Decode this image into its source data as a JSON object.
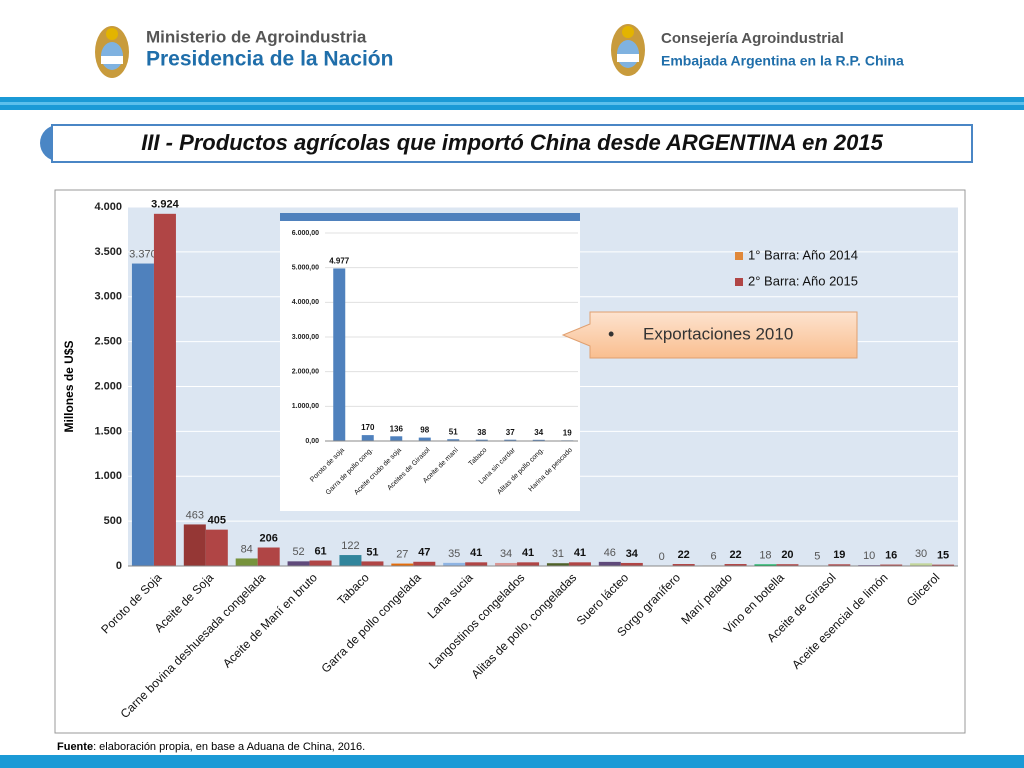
{
  "header": {
    "left_line1": "Ministerio de Agroindustria",
    "left_line2": "Presidencia de la Nación",
    "right_line1": "Consejería Agroindustrial",
    "right_line2": "Embajada Argentina en la R.P. China"
  },
  "title": "III - Productos agrícolas que importó China desde ARGENTINA en 2015",
  "chart_data": [
    {
      "type": "bar",
      "y_label": "Millones de U$S",
      "categories": [
        "Poroto de Soja",
        "Aceite de Soja",
        "Carne bovina deshuesada congelada",
        "Aceite de Maní en bruto",
        "Tabaco",
        "Garra de pollo congelada",
        "Lana sucia",
        "Langostinos congelados",
        "Alitas de pollo, congeladas",
        "Suero lácteo",
        "Sorgo granífero",
        "Maní pelado",
        "Vino en botella",
        "Aceite de Girasol",
        "Aceite esencial de limón",
        "Glicerol"
      ],
      "series": [
        {
          "name": "1° Barra: Año 2014",
          "color": "#e0883a",
          "colors": [
            "#4f81bd",
            "#953735",
            "#77933c",
            "#604a7b",
            "#31859c",
            "#e46c0a",
            "#8eb4e3",
            "#d99694",
            "#4f6228",
            "#5f497a",
            "#4bacc6",
            "#f79646",
            "#00b050",
            "#c0504d",
            "#8064a2",
            "#c3d69b"
          ],
          "values": [
            3370,
            463,
            84,
            52,
            122,
            27,
            35,
            34,
            31,
            46,
            0,
            6,
            18,
            5,
            10,
            30
          ],
          "value_labels": [
            "3.370",
            "463",
            "84",
            "52",
            "122",
            "27",
            "35",
            "34",
            "31",
            "46",
            "0",
            "6",
            "18",
            "5",
            "10",
            "30"
          ]
        },
        {
          "name": "2° Barra: Año 2015",
          "color": "#b04545",
          "values": [
            3924,
            405,
            206,
            61,
            51,
            47,
            41,
            41,
            41,
            34,
            22,
            22,
            20,
            19,
            16,
            15
          ],
          "value_labels": [
            "3.924",
            "405",
            "206",
            "61",
            "51",
            "47",
            "41",
            "41",
            "41",
            "34",
            "22",
            "22",
            "20",
            "19",
            "16",
            "15"
          ]
        }
      ],
      "ylim": [
        0,
        4000
      ],
      "yticks": [
        0,
        500,
        {
          "value": 1000,
          "label": "1.000"
        },
        {
          "value": 1500,
          "label": "1.500"
        },
        {
          "value": 2000,
          "label": "2.000"
        },
        {
          "value": 2500,
          "label": "2.500"
        },
        {
          "value": 3000,
          "label": "3.000"
        },
        {
          "value": 3500,
          "label": "3.500"
        },
        {
          "value": 4000,
          "label": "4.000"
        }
      ],
      "grid": true
    },
    {
      "type": "bar",
      "categories": [
        "Poroto de soja",
        "Garra de pollo cong.",
        "Aceite crudo de soja",
        "Aceites de Girasol",
        "Aceite de maní",
        "Tabaco",
        "Lana sin cardar",
        "Alitas de pollo cong.",
        "Harina de pescado"
      ],
      "values": [
        4977,
        170,
        136,
        98,
        51,
        38,
        37,
        34,
        19
      ],
      "value_labels": [
        "4.977",
        "170",
        "136",
        "98",
        "51",
        "38",
        "37",
        "34",
        "19"
      ],
      "color": "#4f81bd",
      "ylim": [
        0,
        6000
      ],
      "yticks": [
        {
          "value": 0,
          "label": "0,00"
        },
        {
          "value": 1000,
          "label": "1.000,00"
        },
        {
          "value": 2000,
          "label": "2.000,00"
        },
        {
          "value": 3000,
          "label": "3.000,00"
        },
        {
          "value": 4000,
          "label": "4.000,00"
        },
        {
          "value": 5000,
          "label": "5.000,00"
        },
        {
          "value": 6000,
          "label": "6.000,00"
        }
      ],
      "grid": true
    }
  ],
  "callout": {
    "bullet": "•",
    "text": "Exportaciones 2010"
  },
  "footer": {
    "label": "Fuente",
    "text": ": elaboración propia, en base a Aduana de China, 2016."
  }
}
